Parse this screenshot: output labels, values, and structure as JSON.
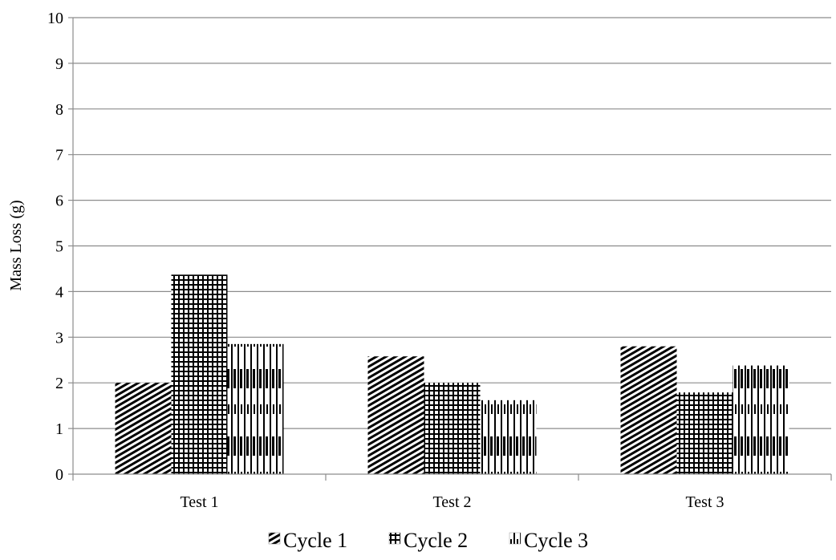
{
  "chart_data": {
    "type": "bar",
    "title": "",
    "xlabel": "",
    "ylabel": "Mass Loss (g)",
    "ylim": [
      0,
      10
    ],
    "yticks": [
      0,
      1,
      2,
      3,
      4,
      5,
      6,
      7,
      8,
      9,
      10
    ],
    "grid": true,
    "legend_position": "bottom",
    "categories": [
      "Test 1",
      "Test 2",
      "Test 3"
    ],
    "series": [
      {
        "name": "Cycle 1",
        "values": [
          2.0,
          2.58,
          2.8
        ]
      },
      {
        "name": "Cycle 2",
        "values": [
          4.37,
          2.0,
          1.79
        ]
      },
      {
        "name": "Cycle 3",
        "values": [
          2.85,
          1.62,
          2.38
        ]
      }
    ]
  }
}
